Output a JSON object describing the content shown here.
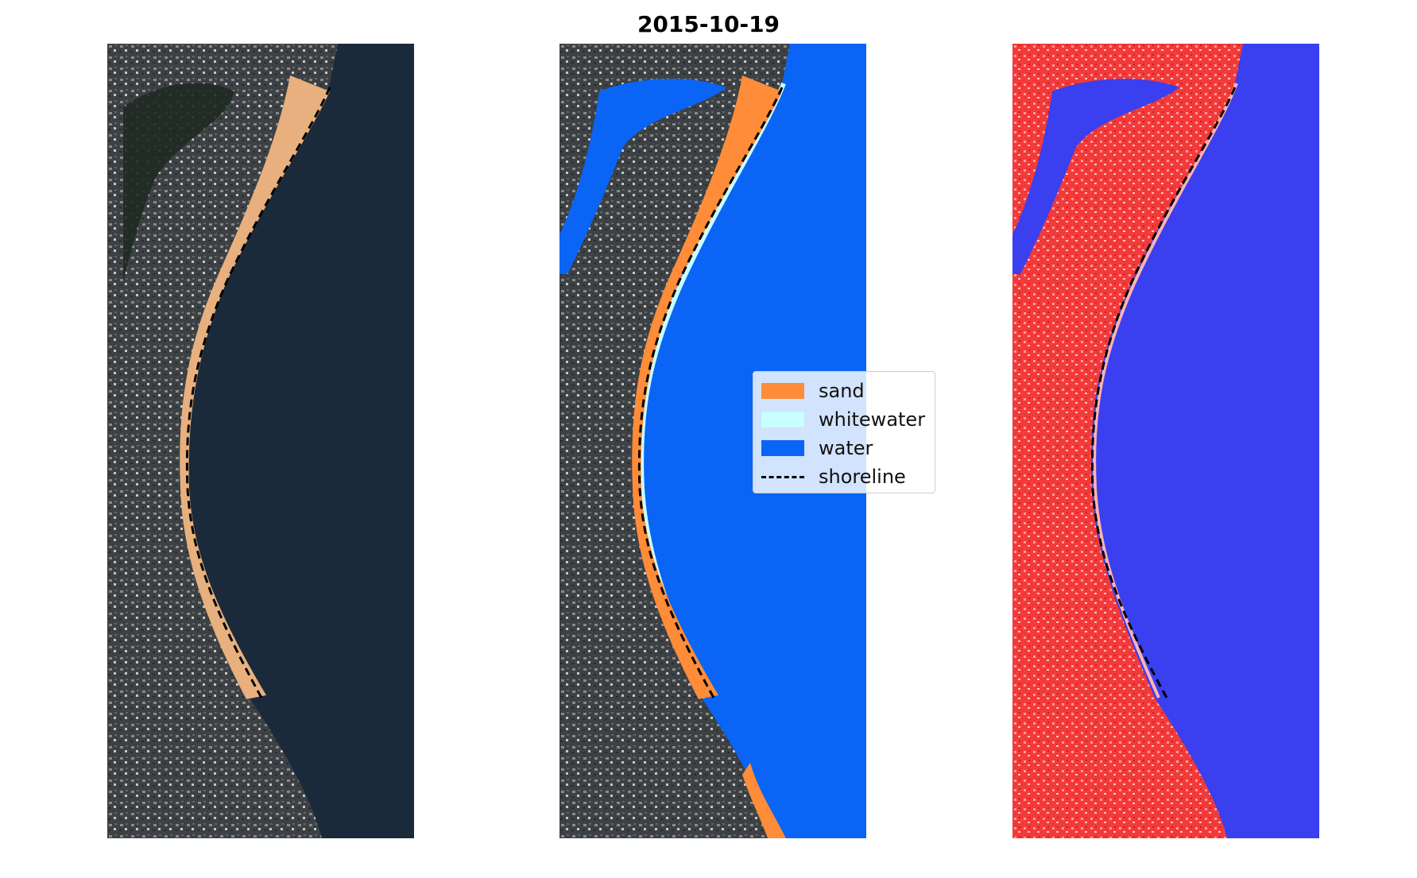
{
  "title": "2015-10-19",
  "panels": [
    {
      "name": "rgb-image"
    },
    {
      "name": "classified-image"
    },
    {
      "name": "water-index-image"
    }
  ],
  "legend": {
    "items": [
      {
        "label": "sand",
        "color": "#ff8c38"
      },
      {
        "label": "whitewater",
        "color": "#c8ffff"
      },
      {
        "label": "water",
        "color": "#0a64f5"
      },
      {
        "label": "shoreline",
        "color": "#000000",
        "style": "dashed"
      }
    ]
  },
  "colors": {
    "land_dark": "#3b3f43",
    "sea_dark": "#1b2a3a",
    "sand": "#e8b07e",
    "class_water": "#0a64f5",
    "index_land": "#f23a3a",
    "index_water": "#3a3ff0"
  }
}
